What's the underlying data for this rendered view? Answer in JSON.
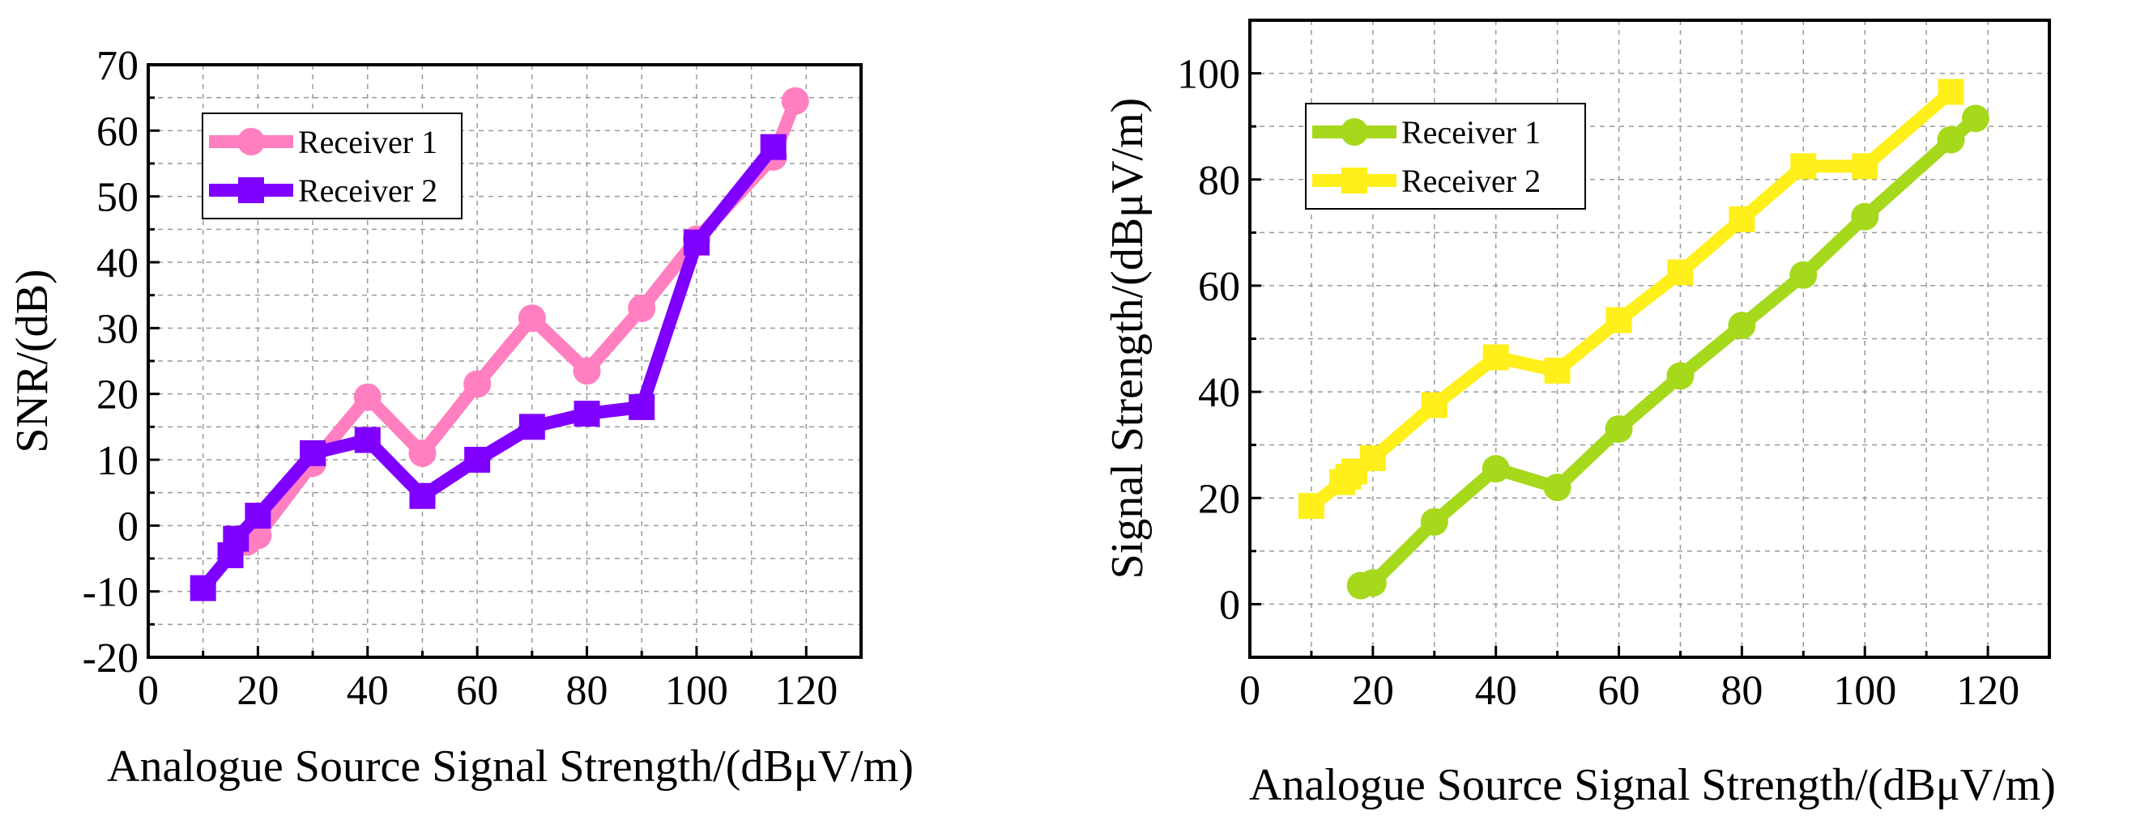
{
  "chart_data": [
    {
      "type": "line",
      "title": "",
      "xlabel": "Analogue Source Signal Strength/(dBμV/m)",
      "ylabel": "SNR/(dB)",
      "xlim": [
        0,
        130
      ],
      "ylim": [
        -20,
        70
      ],
      "xticks": [
        0,
        20,
        40,
        60,
        80,
        100,
        120
      ],
      "yticks": [
        -20,
        -10,
        0,
        10,
        20,
        30,
        40,
        50,
        60,
        70
      ],
      "grid": true,
      "legend_position": "top-left",
      "series": [
        {
          "name": "Receiver 1",
          "color": "#ff7fc0",
          "marker": "circle",
          "x": [
            18,
            20,
            30,
            40,
            50,
            60,
            70,
            80,
            90,
            100,
            114,
            118
          ],
          "y": [
            -2.5,
            -1.5,
            9.5,
            19.5,
            11,
            21.5,
            31.5,
            23.5,
            33,
            43.5,
            56,
            64.5
          ]
        },
        {
          "name": "Receiver 2",
          "color": "#7f00ff",
          "marker": "square",
          "x": [
            10,
            15,
            16,
            20,
            30,
            40,
            50,
            60,
            70,
            80,
            90,
            100,
            114
          ],
          "y": [
            -9.5,
            -4.5,
            -2,
            1.5,
            11,
            13,
            4.5,
            10,
            15,
            17,
            18,
            43,
            57.5
          ]
        }
      ]
    },
    {
      "type": "line",
      "title": "",
      "xlabel": "Analogue Source Signal Strength/(dBμV/m)",
      "ylabel": "Signal Strength/(dBμV/m)",
      "xlim": [
        0,
        130
      ],
      "ylim": [
        -10,
        110
      ],
      "xticks": [
        0,
        20,
        40,
        60,
        80,
        100,
        120
      ],
      "yticks": [
        0,
        20,
        40,
        60,
        80,
        100
      ],
      "grid": true,
      "legend_position": "top-left",
      "series": [
        {
          "name": "Receiver 1",
          "color": "#a6d81c",
          "marker": "circle",
          "x": [
            18,
            20,
            30,
            40,
            50,
            60,
            70,
            80,
            90,
            100,
            114,
            118
          ],
          "y": [
            3.5,
            4,
            15.5,
            25.5,
            22,
            33,
            43,
            52.5,
            62,
            73,
            87.5,
            91.5
          ]
        },
        {
          "name": "Receiver 2",
          "color": "#ffef1a",
          "marker": "square",
          "x": [
            10,
            15,
            16,
            17,
            20,
            30,
            40,
            50,
            60,
            70,
            80,
            90,
            100,
            114
          ],
          "y": [
            18.5,
            23,
            24,
            25,
            27.5,
            37.5,
            46.5,
            44,
            53.5,
            62.5,
            72.5,
            82.5,
            82.5,
            96.5
          ]
        }
      ]
    }
  ]
}
